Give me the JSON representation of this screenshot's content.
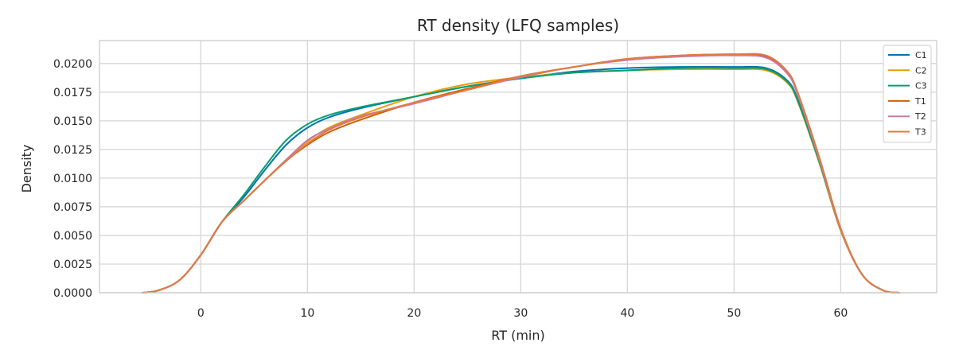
{
  "chart_data": {
    "type": "line",
    "title": "RT density (LFQ samples)",
    "xlabel": "RT (min)",
    "ylabel": "Density",
    "xlim": [
      -9.5,
      69
    ],
    "ylim": [
      0,
      0.022
    ],
    "x_ticks": [
      0,
      10,
      20,
      30,
      40,
      50,
      60
    ],
    "y_ticks": [
      0,
      0.0025,
      0.005,
      0.0075,
      0.01,
      0.0125,
      0.015,
      0.0175,
      0.02
    ],
    "x_tick_labels": [
      "0",
      "10",
      "20",
      "30",
      "40",
      "50",
      "60"
    ],
    "y_tick_labels": [
      "0.0000",
      "0.0025",
      "0.0050",
      "0.0075",
      "0.0100",
      "0.0125",
      "0.0150",
      "0.0175",
      "0.0200"
    ],
    "grid": true,
    "legend_position": "top-right",
    "x": [
      -5.5,
      -4,
      -2,
      0,
      2,
      4,
      6,
      8,
      10,
      12,
      15,
      20,
      25,
      30,
      35,
      40,
      45,
      50,
      53,
      55,
      56,
      58,
      60,
      62,
      64,
      65.5
    ],
    "series": [
      {
        "name": "C1",
        "color": "#0072b2",
        "values": [
          0,
          0.0002,
          0.0011,
          0.0033,
          0.0062,
          0.0083,
          0.0107,
          0.0129,
          0.0144,
          0.0153,
          0.0161,
          0.0171,
          0.018,
          0.0187,
          0.0193,
          0.0196,
          0.0197,
          0.0197,
          0.0196,
          0.0185,
          0.0168,
          0.0115,
          0.0055,
          0.0016,
          0.0002,
          0
        ]
      },
      {
        "name": "C2",
        "color": "#e69f00",
        "values": [
          0,
          0.0002,
          0.0011,
          0.0033,
          0.0062,
          0.008,
          0.0098,
          0.0116,
          0.0132,
          0.0144,
          0.0155,
          0.0171,
          0.0182,
          0.0188,
          0.0192,
          0.0194,
          0.0195,
          0.0195,
          0.0194,
          0.0183,
          0.0166,
          0.0113,
          0.0054,
          0.0016,
          0.0002,
          0
        ]
      },
      {
        "name": "C3",
        "color": "#009e73",
        "values": [
          0,
          0.0002,
          0.0011,
          0.0033,
          0.0062,
          0.0085,
          0.011,
          0.0133,
          0.0147,
          0.0155,
          0.0162,
          0.0171,
          0.018,
          0.0187,
          0.0192,
          0.0194,
          0.0196,
          0.0196,
          0.0195,
          0.0184,
          0.0167,
          0.0114,
          0.0055,
          0.0016,
          0.0002,
          0
        ]
      },
      {
        "name": "T1",
        "color": "#d55e00",
        "values": [
          0,
          0.0002,
          0.0011,
          0.0033,
          0.0062,
          0.008,
          0.0098,
          0.0115,
          0.0129,
          0.014,
          0.0151,
          0.0166,
          0.0178,
          0.0189,
          0.0197,
          0.0204,
          0.0207,
          0.0208,
          0.0206,
          0.0192,
          0.0173,
          0.0117,
          0.0056,
          0.0016,
          0.0002,
          0
        ]
      },
      {
        "name": "T2",
        "color": "#cc79a7",
        "values": [
          0,
          0.0002,
          0.0011,
          0.0033,
          0.0062,
          0.008,
          0.0098,
          0.0116,
          0.0133,
          0.0143,
          0.0154,
          0.0165,
          0.0177,
          0.0188,
          0.0197,
          0.0203,
          0.0206,
          0.0207,
          0.0205,
          0.0191,
          0.0172,
          0.0116,
          0.0055,
          0.0016,
          0.0002,
          0
        ]
      },
      {
        "name": "T3",
        "color": "#e07a43",
        "values": [
          0,
          0.0002,
          0.0011,
          0.0033,
          0.0062,
          0.008,
          0.0098,
          0.0115,
          0.013,
          0.0142,
          0.0153,
          0.0166,
          0.0177,
          0.0189,
          0.0197,
          0.0204,
          0.0207,
          0.0208,
          0.0207,
          0.0193,
          0.0174,
          0.0118,
          0.0056,
          0.0016,
          0.0002,
          0
        ]
      }
    ]
  }
}
